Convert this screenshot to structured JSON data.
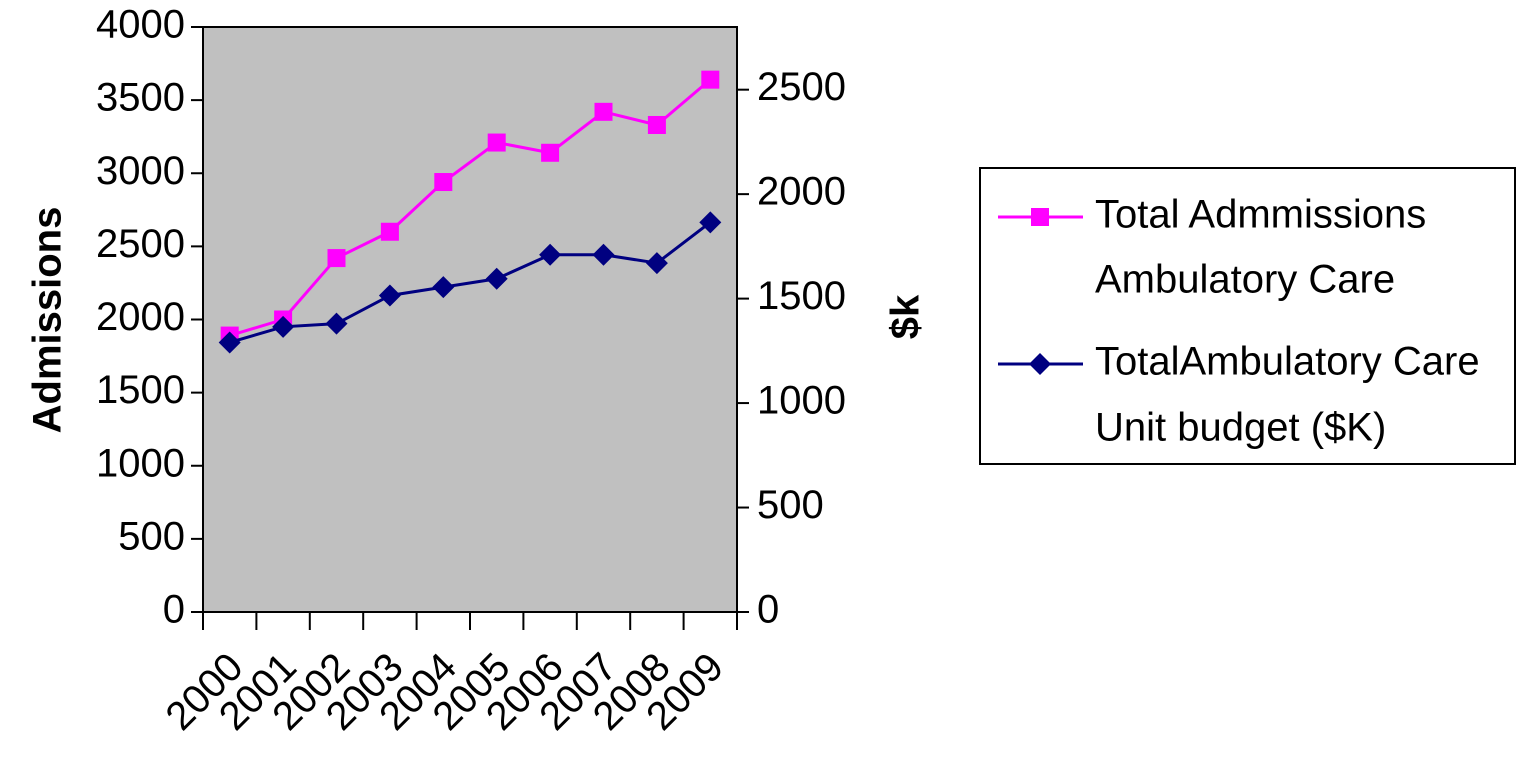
{
  "chart_data": {
    "type": "line",
    "x": [
      "2000",
      "2001",
      "2002",
      "2003",
      "2004",
      "2005",
      "2006",
      "2007",
      "2008",
      "2009"
    ],
    "series": [
      {
        "name": "Total Admmissions Ambulatory Care",
        "name_lines": [
          "Total Admmissions",
          "Ambulatory Care"
        ],
        "axis": "left",
        "color": "#ff00ff",
        "marker": "square",
        "values": [
          1890,
          2000,
          2420,
          2600,
          2940,
          3210,
          3140,
          3420,
          3330,
          3640
        ]
      },
      {
        "name": "TotalAmbulatory Care Unit budget ($K)",
        "name_lines": [
          "TotalAmbulatory Care",
          "Unit budget ($K)"
        ],
        "axis": "right",
        "color": "#000080",
        "marker": "diamond",
        "values": [
          1290,
          1365,
          1380,
          1515,
          1555,
          1595,
          1710,
          1710,
          1670,
          1865
        ]
      }
    ],
    "ylabel": "Admissions",
    "y2label": "$k",
    "ylim": [
      0,
      4000
    ],
    "y2lim": [
      0,
      2800
    ],
    "yticks": [
      "0",
      "500",
      "1000",
      "1500",
      "2000",
      "2500",
      "3000",
      "3500",
      "4000"
    ],
    "y2ticks": [
      "0",
      "500",
      "1000",
      "1500",
      "2000",
      "2500"
    ],
    "plot_background": "#c0c0c0",
    "grid": false,
    "legend_position": "right"
  }
}
